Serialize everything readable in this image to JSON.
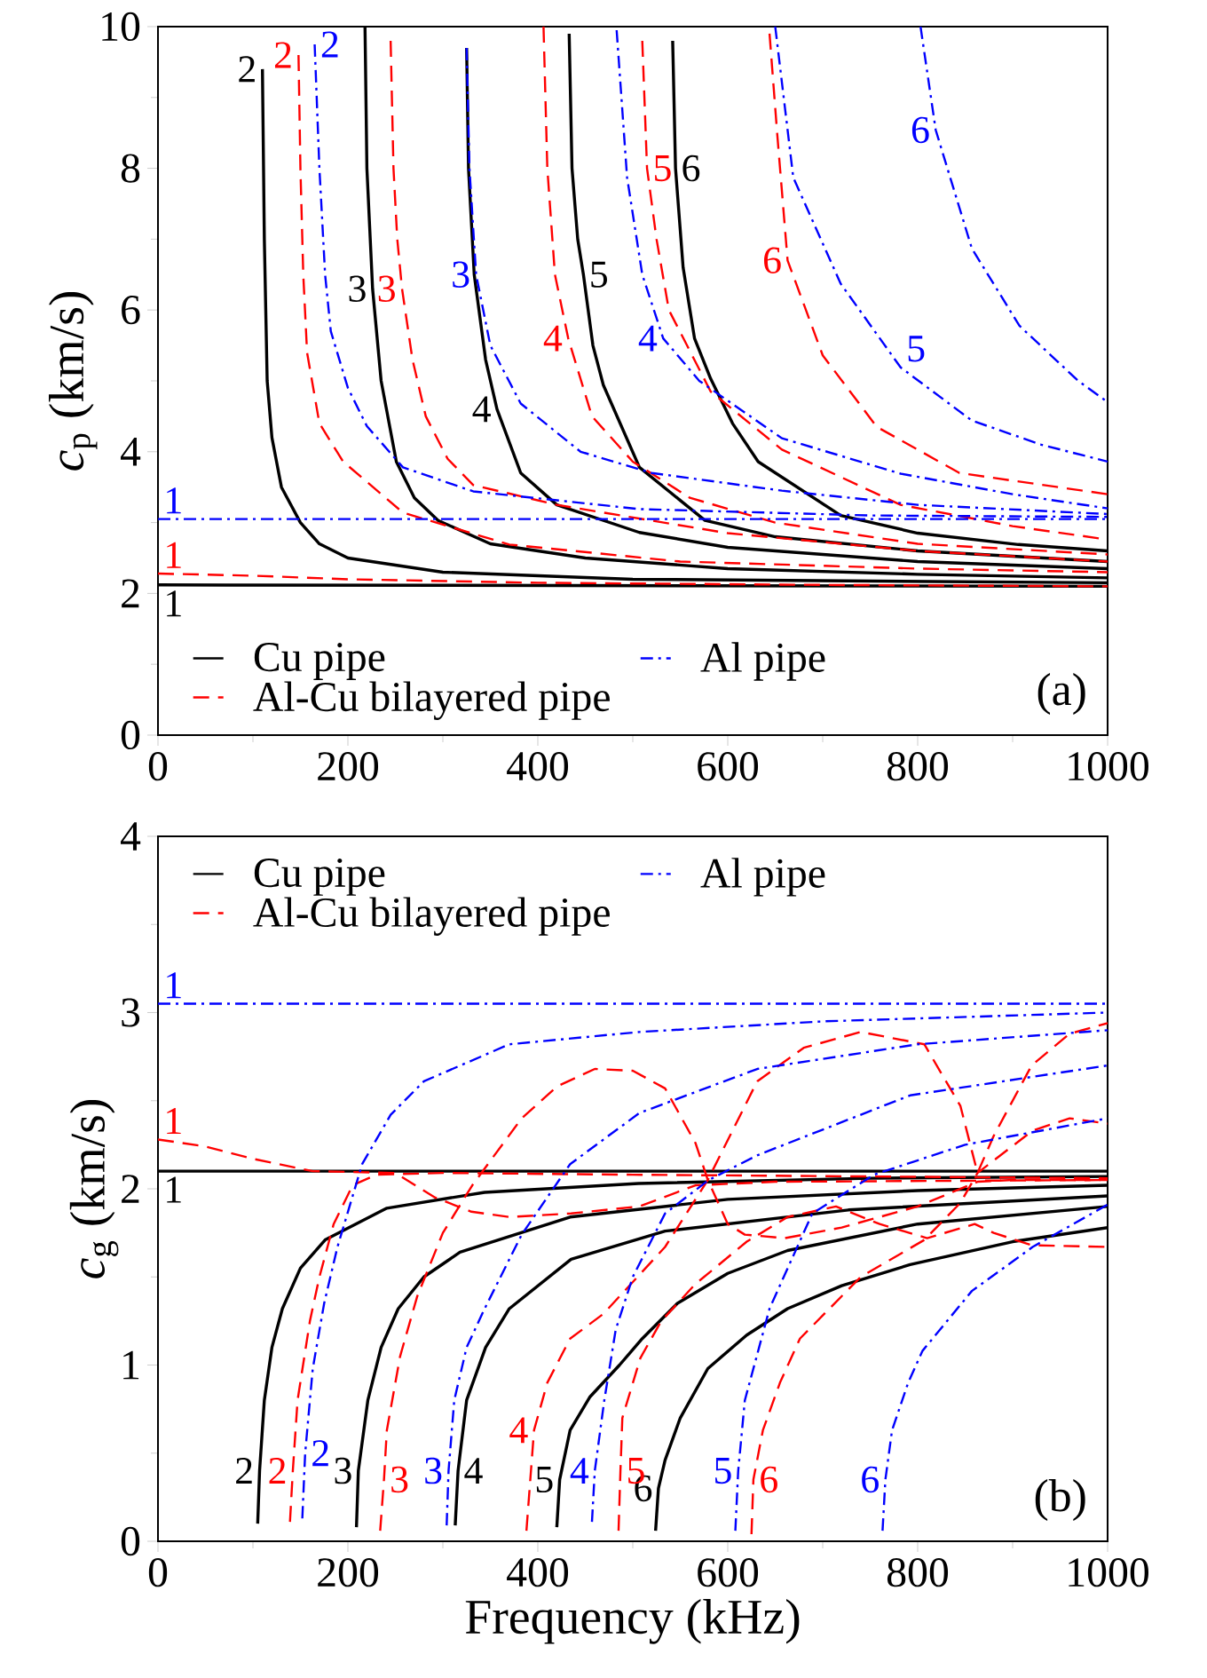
{
  "chart_data": [
    {
      "type": "line",
      "ylabel": "*c*$_{p}$ (km/s)",
      "xlim": [
        0,
        1000
      ],
      "ylim": [
        0,
        10
      ],
      "xticks": [
        0,
        200,
        400,
        600,
        800,
        1000
      ],
      "yticks": [
        0,
        2,
        4,
        6,
        8,
        10
      ],
      "legend": "bottom",
      "marker": "none",
      "series": [
        {
          "name": "Cu pipe",
          "color": "#000000",
          "line_style": "solid",
          "x": [
            0,
            500,
            1000
          ],
          "values": [
            2.12,
            2.11,
            2.1
          ]
        },
        {
          "color": "#000000",
          "line_style": "solid",
          "x": [
            110,
            112,
            115,
            120,
            130,
            150,
            170,
            200,
            300,
            500,
            1000
          ],
          "values": [
            9.4,
            7,
            5,
            4.2,
            3.5,
            3.0,
            2.7,
            2.5,
            2.3,
            2.2,
            2.15
          ]
        },
        {
          "color": "#000000",
          "line_style": "solid",
          "x": [
            218,
            220,
            226,
            235,
            251,
            270,
            295,
            350,
            450,
            600,
            800,
            1000
          ],
          "values": [
            10,
            8,
            6.3,
            5,
            3.86,
            3.35,
            3.03,
            2.7,
            2.5,
            2.35,
            2.27,
            2.22
          ]
        },
        {
          "color": "#000000",
          "line_style": "solid",
          "x": [
            325,
            327,
            333,
            345,
            357,
            382,
            420,
            507,
            600,
            800,
            1000
          ],
          "values": [
            9.7,
            8,
            6.5,
            5.3,
            4.6,
            3.7,
            3.25,
            2.86,
            2.65,
            2.45,
            2.35
          ]
        },
        {
          "color": "#000000",
          "line_style": "solid",
          "x": [
            433,
            436,
            442,
            448,
            458,
            469,
            507,
            576,
            650,
            800,
            1000
          ],
          "values": [
            9.9,
            8,
            7,
            6.5,
            5.5,
            4.94,
            3.78,
            3.03,
            2.8,
            2.6,
            2.45
          ]
        },
        {
          "color": "#000000",
          "line_style": "solid",
          "x": [
            542,
            545,
            553,
            565,
            582,
            605,
            632,
            719,
            800,
            906,
            1000
          ],
          "values": [
            9.8,
            8,
            6.6,
            5.6,
            5.03,
            4.4,
            3.86,
            3.1,
            2.85,
            2.69,
            2.6
          ]
        },
        {
          "name": "Al-Cu bilayered pipe",
          "color": "#ff0000",
          "line_style": "dashed",
          "x": [
            0,
            100,
            200,
            400,
            700,
            1000
          ],
          "values": [
            2.28,
            2.25,
            2.2,
            2.15,
            2.12,
            2.1
          ]
        },
        {
          "color": "#ff0000",
          "line_style": "dashed",
          "x": [
            148,
            150,
            153,
            157,
            170,
            195,
            258,
            370,
            550,
            800,
            1000
          ],
          "values": [
            9.6,
            8,
            6.5,
            5.4,
            4.4,
            3.86,
            3.14,
            2.69,
            2.45,
            2.35,
            2.3
          ]
        },
        {
          "color": "#ff0000",
          "line_style": "dashed",
          "x": [
            245,
            248,
            252,
            257,
            268,
            282,
            305,
            332,
            420,
            600,
            800,
            1000
          ],
          "values": [
            9.8,
            8,
            7,
            6.3,
            5.3,
            4.5,
            3.9,
            3.53,
            3.25,
            2.85,
            2.6,
            2.45
          ]
        },
        {
          "color": "#ff0000",
          "line_style": "dashed",
          "x": [
            406,
            410,
            418,
            432,
            457,
            500,
            560,
            650,
            800,
            1000
          ],
          "values": [
            10,
            8,
            6.5,
            5.6,
            4.5,
            3.86,
            3.35,
            3.0,
            2.7,
            2.55
          ]
        },
        {
          "color": "#ff0000",
          "line_style": "dashed",
          "x": [
            510,
            515,
            525,
            538,
            582,
            657,
            782,
            900,
            1000
          ],
          "values": [
            9.8,
            8,
            7,
            6.0,
            4.85,
            4.03,
            3.25,
            2.95,
            2.76
          ]
        },
        {
          "color": "#ff0000",
          "line_style": "dashed",
          "x": [
            644,
            652,
            663,
            700,
            757,
            844,
            1000
          ],
          "values": [
            9.9,
            8.5,
            6.7,
            5.36,
            4.35,
            3.7,
            3.4
          ]
        },
        {
          "name": "Al pipe",
          "color": "#0000ff",
          "line_style": "dashdot",
          "x": [
            0,
            1000
          ],
          "values": [
            3.05,
            3.05
          ]
        },
        {
          "color": "#0000ff",
          "line_style": "dashdot",
          "x": [
            165,
            170,
            176,
            182,
            200,
            220,
            258,
            332,
            507,
            750,
            1000
          ],
          "values": [
            9.75,
            8,
            6.5,
            5.7,
            4.9,
            4.36,
            3.78,
            3.44,
            3.19,
            3.1,
            3.08
          ]
        },
        {
          "color": "#0000ff",
          "line_style": "dashdot",
          "x": [
            325,
            328,
            335,
            350,
            382,
            445,
            520,
            657,
            800,
            1000
          ],
          "values": [
            9.7,
            8,
            6.5,
            5.5,
            4.68,
            4.0,
            3.7,
            3.45,
            3.25,
            3.12
          ]
        },
        {
          "color": "#0000ff",
          "line_style": "dashdot",
          "x": [
            483,
            494,
            510,
            532,
            570,
            657,
            782,
            900,
            1000
          ],
          "values": [
            9.95,
            7.87,
            6.5,
            5.6,
            5.0,
            4.19,
            3.69,
            3.4,
            3.2
          ]
        },
        {
          "color": "#0000ff",
          "line_style": "dashdot",
          "x": [
            650,
            669,
            719,
            782,
            857,
            930,
            1000
          ],
          "values": [
            10,
            7.87,
            6.37,
            5.19,
            4.44,
            4.1,
            3.86
          ]
        },
        {
          "color": "#0000ff",
          "line_style": "dashdot",
          "x": [
            803,
            819,
            857,
            907,
            969,
            1000
          ],
          "values": [
            10,
            8.54,
            6.87,
            5.78,
            5.0,
            4.7
          ]
        }
      ],
      "annotations": [
        {
          "text": "1",
          "x": 0,
          "y": 2.12
        },
        {
          "text": "2",
          "x": 110,
          "y": 9.4
        },
        {
          "text": "3",
          "x": 226,
          "y": 6.3
        },
        {
          "text": "4",
          "x": 357,
          "y": 4.6
        },
        {
          "text": "5",
          "x": 448,
          "y": 6.5
        },
        {
          "text": "6",
          "x": 545,
          "y": 8
        },
        {
          "text": "1",
          "x": 0,
          "y": 3.05
        },
        {
          "text": "2",
          "x": 165,
          "y": 9.75
        },
        {
          "text": "3",
          "x": 335,
          "y": 6.5
        },
        {
          "text": "4",
          "x": 532,
          "y": 5.6
        },
        {
          "text": "5",
          "x": 782,
          "y": 5.19
        },
        {
          "text": "6",
          "x": 819,
          "y": 8.54
        },
        {
          "text": "1",
          "x": 0,
          "y": 2.28
        },
        {
          "text": "2",
          "x": 148,
          "y": 9.6
        },
        {
          "text": "3",
          "x": 257,
          "y": 6.3
        },
        {
          "text": "4",
          "x": 432,
          "y": 5.6
        },
        {
          "text": "5",
          "x": 515,
          "y": 8
        },
        {
          "text": "6",
          "x": 663,
          "y": 6.7
        },
        "(a)"
      ]
    },
    {
      "type": "line",
      "xlabel": "Frequency (kHz)",
      "ylabel": "*c*$_{g}$ (km/s)",
      "xlim": [
        0,
        1000
      ],
      "ylim": [
        0,
        4
      ],
      "xticks": [
        0,
        200,
        400,
        600,
        800,
        1000
      ],
      "yticks": [
        0,
        1,
        2,
        3,
        4
      ],
      "legend": "top",
      "marker": "none",
      "series": [
        {
          "name": "Cu pipe",
          "color": "#000000",
          "line_style": "solid",
          "x": [
            0,
            1000
          ],
          "values": [
            2.1,
            2.1
          ]
        },
        {
          "color": "#000000",
          "line_style": "solid",
          "x": [
            105,
            107,
            112,
            120,
            131,
            150,
            176,
            241,
            344,
            506,
            750,
            1000
          ],
          "values": [
            0.1,
            0.4,
            0.8,
            1.1,
            1.32,
            1.55,
            1.71,
            1.89,
            1.98,
            2.03,
            2.06,
            2.07
          ]
        },
        {
          "color": "#000000",
          "line_style": "solid",
          "x": [
            209,
            211,
            221,
            235,
            253,
            280,
            318,
            434,
            600,
            800,
            1000
          ],
          "values": [
            0.08,
            0.4,
            0.8,
            1.1,
            1.32,
            1.5,
            1.64,
            1.84,
            1.94,
            1.99,
            2.02
          ]
        },
        {
          "color": "#000000",
          "line_style": "solid",
          "x": [
            313,
            316,
            325,
            345,
            370,
            435,
            534,
            727,
            1000
          ],
          "values": [
            0.09,
            0.4,
            0.8,
            1.1,
            1.32,
            1.6,
            1.76,
            1.88,
            1.96
          ]
        },
        {
          "color": "#000000",
          "line_style": "solid",
          "x": [
            420,
            423,
            434,
            455,
            486,
            510,
            547,
            600,
            663,
            800,
            1000
          ],
          "values": [
            0.08,
            0.35,
            0.63,
            0.82,
            1.0,
            1.15,
            1.35,
            1.52,
            1.65,
            1.8,
            1.9
          ]
        },
        {
          "color": "#000000",
          "line_style": "solid",
          "x": [
            524,
            527,
            534,
            550,
            579,
            620,
            663,
            720,
            792,
            900,
            1000
          ],
          "values": [
            0.06,
            0.3,
            0.46,
            0.7,
            0.98,
            1.17,
            1.32,
            1.45,
            1.57,
            1.7,
            1.78
          ]
        },
        {
          "name": "Al-Cu bilayered pipe",
          "color": "#ff0000",
          "line_style": "dashed",
          "x": [
            0,
            50,
            100,
            163,
            250,
            292,
            330,
            370,
            435,
            507,
            566,
            650,
            1000
          ],
          "values": [
            2.28,
            2.24,
            2.17,
            2.1,
            2.09,
            1.95,
            1.87,
            1.84,
            1.86,
            1.9,
            2.02,
            2.04,
            2.05
          ]
        },
        {
          "color": "#ff0000",
          "line_style": "dashed",
          "x": [
            139,
            142,
            147,
            160,
            170,
            185,
            205,
            230,
            300,
            500,
            1000
          ],
          "values": [
            0.11,
            0.4,
            0.8,
            1.25,
            1.5,
            1.8,
            2.02,
            2.08,
            2.09,
            2.08,
            2.06
          ]
        },
        {
          "color": "#ff0000",
          "line_style": "dashed",
          "x": [
            234,
            238,
            241,
            255,
            273,
            300,
            331,
            383,
            420,
            460,
            500,
            534,
            566,
            579,
            600,
            618,
            660,
            720,
            800,
            863,
            900,
            1000
          ],
          "values": [
            0.06,
            0.35,
            0.63,
            1.05,
            1.39,
            1.75,
            2.02,
            2.4,
            2.58,
            2.68,
            2.67,
            2.57,
            2.26,
            2.05,
            1.8,
            1.74,
            1.72,
            1.78,
            1.9,
            2.04,
            2.05,
            2.05
          ]
        },
        {
          "color": "#ff0000",
          "line_style": "dashed",
          "x": [
            388,
            396,
            410,
            434,
            469,
            534,
            579,
            631,
            680,
            740,
            807,
            845,
            863,
            880,
            920,
            960,
            1000
          ],
          "values": [
            0.06,
            0.63,
            0.9,
            1.15,
            1.29,
            1.67,
            2.05,
            2.61,
            2.8,
            2.89,
            2.82,
            2.47,
            2.09,
            2.3,
            2.7,
            2.88,
            2.94
          ]
        },
        {
          "color": "#ff0000",
          "line_style": "dashed",
          "x": [
            485,
            487,
            489,
            508,
            530,
            566,
            620,
            663,
            714,
            760,
            810,
            860,
            880,
            920,
            1000
          ],
          "values": [
            0.06,
            0.4,
            0.7,
            1.04,
            1.25,
            1.46,
            1.7,
            1.84,
            1.9,
            1.8,
            1.72,
            1.8,
            1.75,
            1.68,
            1.67
          ]
        },
        {
          "color": "#ff0000",
          "line_style": "dashed",
          "x": [
            625,
            627,
            637,
            655,
            676,
            740,
            807,
            845,
            863,
            921,
            960,
            1000
          ],
          "values": [
            0.04,
            0.35,
            0.63,
            0.9,
            1.15,
            1.5,
            1.71,
            1.92,
            2.09,
            2.33,
            2.4,
            2.37
          ]
        },
        {
          "name": "Al pipe",
          "color": "#0000ff",
          "line_style": "dashdot",
          "x": [
            0,
            1000
          ],
          "values": [
            3.05,
            3.05
          ]
        },
        {
          "color": "#0000ff",
          "line_style": "dashdot",
          "x": [
            152,
            155,
            163,
            175,
            189,
            215,
            245,
            280,
            370,
            507,
            700,
            1000
          ],
          "values": [
            0.13,
            0.5,
            0.98,
            1.35,
            1.67,
            2.14,
            2.42,
            2.61,
            2.82,
            2.89,
            2.95,
            3.0
          ]
        },
        {
          "color": "#0000ff",
          "line_style": "dashdot",
          "x": [
            304,
            306,
            312,
            325,
            344,
            383,
            434,
            507,
            631,
            800,
            1000
          ],
          "values": [
            0.09,
            0.4,
            0.8,
            1.1,
            1.32,
            1.74,
            2.14,
            2.43,
            2.68,
            2.82,
            2.9
          ]
        },
        {
          "color": "#0000ff",
          "line_style": "dashdot",
          "x": [
            457,
            460,
            470,
            482,
            500,
            534,
            580,
            631,
            792,
            1000
          ],
          "values": [
            0.11,
            0.4,
            0.8,
            1.2,
            1.5,
            1.86,
            2.05,
            2.19,
            2.53,
            2.7
          ]
        },
        {
          "color": "#0000ff",
          "line_style": "dashdot",
          "x": [
            608,
            611,
            618,
            644,
            689,
            754,
            850,
            1000
          ],
          "values": [
            0.06,
            0.4,
            0.8,
            1.32,
            1.86,
            2.08,
            2.25,
            2.4
          ]
        },
        {
          "color": "#0000ff",
          "line_style": "dashdot",
          "x": [
            763,
            766,
            773,
            790,
            805,
            857,
            921,
            1000
          ],
          "values": [
            0.06,
            0.35,
            0.63,
            0.9,
            1.08,
            1.42,
            1.67,
            1.91
          ]
        }
      ],
      "annotations": [
        {
          "text": "1",
          "x": 0,
          "y": 2.1
        },
        {
          "text": "2",
          "x": 107,
          "y": 0.4
        },
        {
          "text": "3",
          "x": 211,
          "y": 0.4
        },
        {
          "text": "4",
          "x": 316,
          "y": 0.4
        },
        {
          "text": "5",
          "x": 423,
          "y": 0.35
        },
        {
          "text": "6",
          "x": 527,
          "y": 0.3
        },
        {
          "text": "1",
          "x": 0,
          "y": 3.05
        },
        {
          "text": "2",
          "x": 155,
          "y": 0.5
        },
        {
          "text": "3",
          "x": 306,
          "y": 0.4
        },
        {
          "text": "4",
          "x": 460,
          "y": 0.4
        },
        {
          "text": "5",
          "x": 611,
          "y": 0.4
        },
        {
          "text": "6",
          "x": 766,
          "y": 0.35
        },
        {
          "text": "1",
          "x": 0,
          "y": 2.28
        },
        {
          "text": "2",
          "x": 142,
          "y": 0.4
        },
        {
          "text": "3",
          "x": 238,
          "y": 0.35
        },
        {
          "text": "4",
          "x": 396,
          "y": 0.63
        },
        {
          "text": "5",
          "x": 487,
          "y": 0.4
        },
        {
          "text": "6",
          "x": 627,
          "y": 0.35
        },
        "(b)"
      ]
    }
  ]
}
